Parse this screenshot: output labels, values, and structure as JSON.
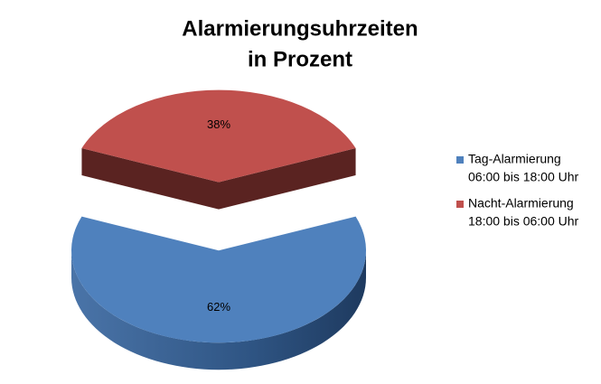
{
  "chart_data": {
    "type": "pie3d",
    "title": [
      "Alarmierungsuhrzeiten",
      "in Prozent"
    ],
    "categories": [
      [
        "Tag-Alarmierung",
        "06:00 bis 18:00 Uhr"
      ],
      [
        "Nacht-Alarmierung",
        "18:00 bis 06:00 Uhr"
      ]
    ],
    "values": [
      62,
      38
    ],
    "value_labels": [
      "62%",
      "38%"
    ],
    "colors": [
      "#4f81bd",
      "#c0504d"
    ]
  }
}
